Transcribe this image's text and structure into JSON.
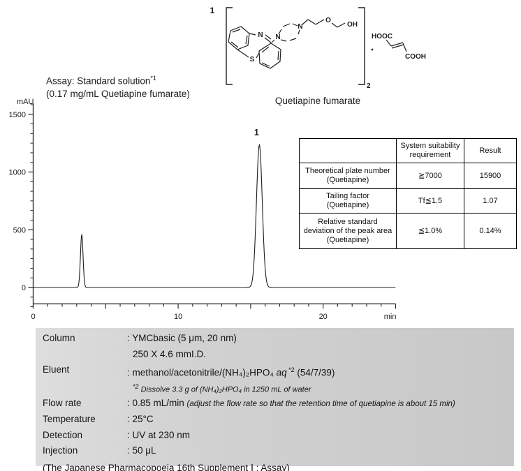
{
  "structure": {
    "peak_no": "1",
    "atom_n_imine": "N",
    "atom_s": "S",
    "atom_n_pip1": "N",
    "atom_n_pip2": "N",
    "atom_o": "O",
    "atom_oh": "OH",
    "bracket_subscript": "2",
    "hooc": "HOOC",
    "cooh": "COOH",
    "caption": "Quetiapine fumarate"
  },
  "assay": {
    "line1_main": "Assay: Standard solution",
    "line1_sup": "*1",
    "line2": "(0.17 mg/mL Quetiapine fumarate)"
  },
  "chart_data": {
    "type": "line",
    "title": "Assay: Standard solution*1 (0.17 mg/mL Quetiapine fumarate)",
    "ylabel": "mAU",
    "xlabel": "min",
    "x_range": [
      0,
      25
    ],
    "x_ticks": [
      0,
      10,
      20
    ],
    "x_minor_step": 1,
    "x_medium_step": 5,
    "y_range": [
      -170,
      1590
    ],
    "y_ticks": [
      0,
      500,
      1000,
      1500
    ],
    "y_minor_divisions": 6,
    "grid": false,
    "baseline_mau": 0,
    "peaks": [
      {
        "label": "",
        "retention_min": 3.35,
        "height_mau": 458,
        "sigma_min": 0.09
      },
      {
        "label": "1",
        "retention_min": 15.6,
        "height_mau": 1234,
        "sigma_min": 0.2
      }
    ]
  },
  "table": {
    "headers": [
      "",
      "System suitability requirement",
      "Result"
    ],
    "rows": [
      {
        "parameter": "Theoretical plate number\n(Quetiapine)",
        "requirement": "≧7000",
        "result": "15900"
      },
      {
        "parameter": "Tailing factor\n(Quetiapine)",
        "requirement": "Tf≦1.5",
        "result": "1.07"
      },
      {
        "parameter": "Relative standard\ndeviation of the peak area\n(Quetiapine)",
        "requirement": "≦1.0%",
        "result": "0.14%"
      }
    ]
  },
  "conditions": {
    "column_label": "Column",
    "column_value": ": YMCbasic (5 μm, 20 nm)",
    "column_value2": "250 X 4.6 mmI.D.",
    "eluent_label": "Eluent",
    "eluent_value_pre": ": methanol/acetonitrile/(NH₄)₂HPO₄ ",
    "eluent_aq": "aq",
    "eluent_sup": " *2",
    "eluent_post": " (54/7/39)",
    "eluent_note_sup": "*2",
    "eluent_note": " Dissolve 3.3 g of (NH₄)₂HPO₄ in 1250 mL of water",
    "flow_label": "Flow rate",
    "flow_value": ": 0.85 mL/min ",
    "flow_note": "(adjust the flow rate so that the retention time of quetiapine is about 15 min)",
    "temp_label": "Temperature",
    "temp_value": ": 25°C",
    "det_label": "Detection",
    "det_value": ": UV at 230 nm",
    "inj_label": "Injection",
    "inj_value": ": 50 μL",
    "source": "(The Japanese Pharmacopoeia 16th Supplement Ⅰ ; Assay)"
  }
}
